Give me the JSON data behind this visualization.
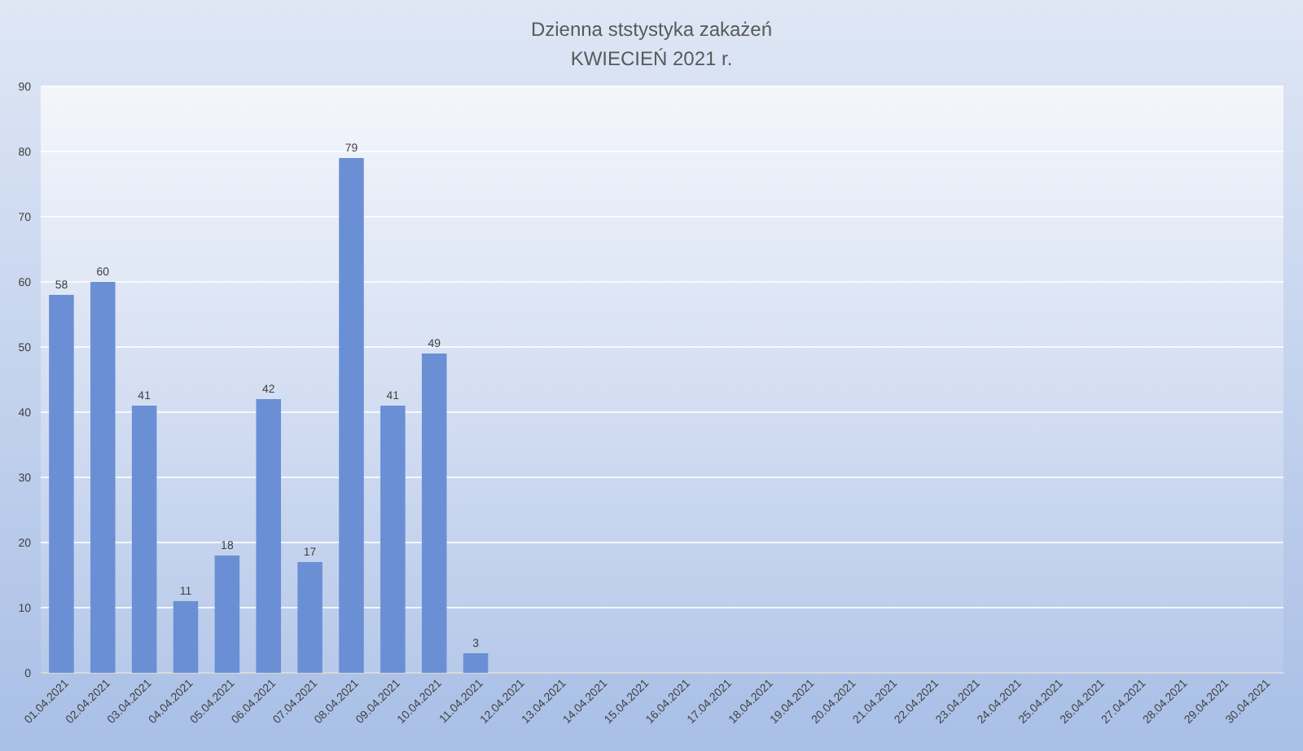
{
  "chart_data": {
    "type": "bar",
    "title": "Dzienna ststystyka zakażeń",
    "subtitle": "KWIECIEŃ 2021 r.",
    "categories": [
      "01.04.2021",
      "02.04.2021",
      "03.04.2021",
      "04.04.2021",
      "05.04.2021",
      "06.04.2021",
      "07.04.2021",
      "08.04.2021",
      "09.04.2021",
      "10.04.2021",
      "11.04.2021",
      "12.04.2021",
      "13.04.2021",
      "14.04.2021",
      "15.04.2021",
      "16.04.2021",
      "17.04.2021",
      "18.04.2021",
      "19.04.2021",
      "20.04.2021",
      "21.04.2021",
      "22.04.2021",
      "23.04.2021",
      "24.04.2021",
      "25.04.2021",
      "26.04.2021",
      "27.04.2021",
      "28.04.2021",
      "29.04.2021",
      "30.04.2021"
    ],
    "values": [
      58,
      60,
      41,
      11,
      18,
      42,
      17,
      79,
      41,
      49,
      3,
      null,
      null,
      null,
      null,
      null,
      null,
      null,
      null,
      null,
      null,
      null,
      null,
      null,
      null,
      null,
      null,
      null,
      null,
      null
    ],
    "color": "#6a8fd4",
    "ylim": [
      0,
      90
    ],
    "yticks": [
      0,
      10,
      20,
      30,
      40,
      50,
      60,
      70,
      80,
      90
    ],
    "grid": "y",
    "data_labels": true
  }
}
